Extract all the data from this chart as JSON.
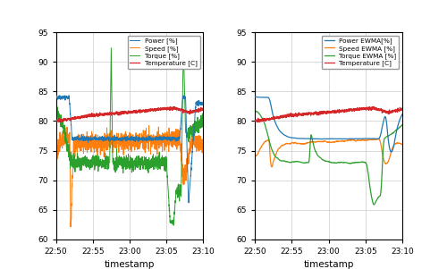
{
  "xlim_minutes": [
    0,
    20
  ],
  "ylim": [
    60,
    95
  ],
  "yticks": [
    60,
    65,
    70,
    75,
    80,
    85,
    90,
    95
  ],
  "xtick_labels": [
    "22:50",
    "22:55",
    "23:00",
    "23:05",
    "23:10"
  ],
  "xtick_positions": [
    0,
    5,
    10,
    15,
    20
  ],
  "xlabel": "timestamp",
  "colors": {
    "power": "#1f77b4",
    "speed": "#ff7f0e",
    "torque": "#2ca02c",
    "temperature": "#d62728"
  },
  "legend_left": [
    "Power [%]",
    "Speed [%]",
    "Torque [%]",
    "Temperature [C]"
  ],
  "legend_right": [
    "Power EWMA[%]",
    "Speed EWMA [%]",
    "Torque EWMA [%]",
    "Temperature [C]"
  ],
  "background_color": "#ffffff",
  "grid_color": "#cccccc"
}
